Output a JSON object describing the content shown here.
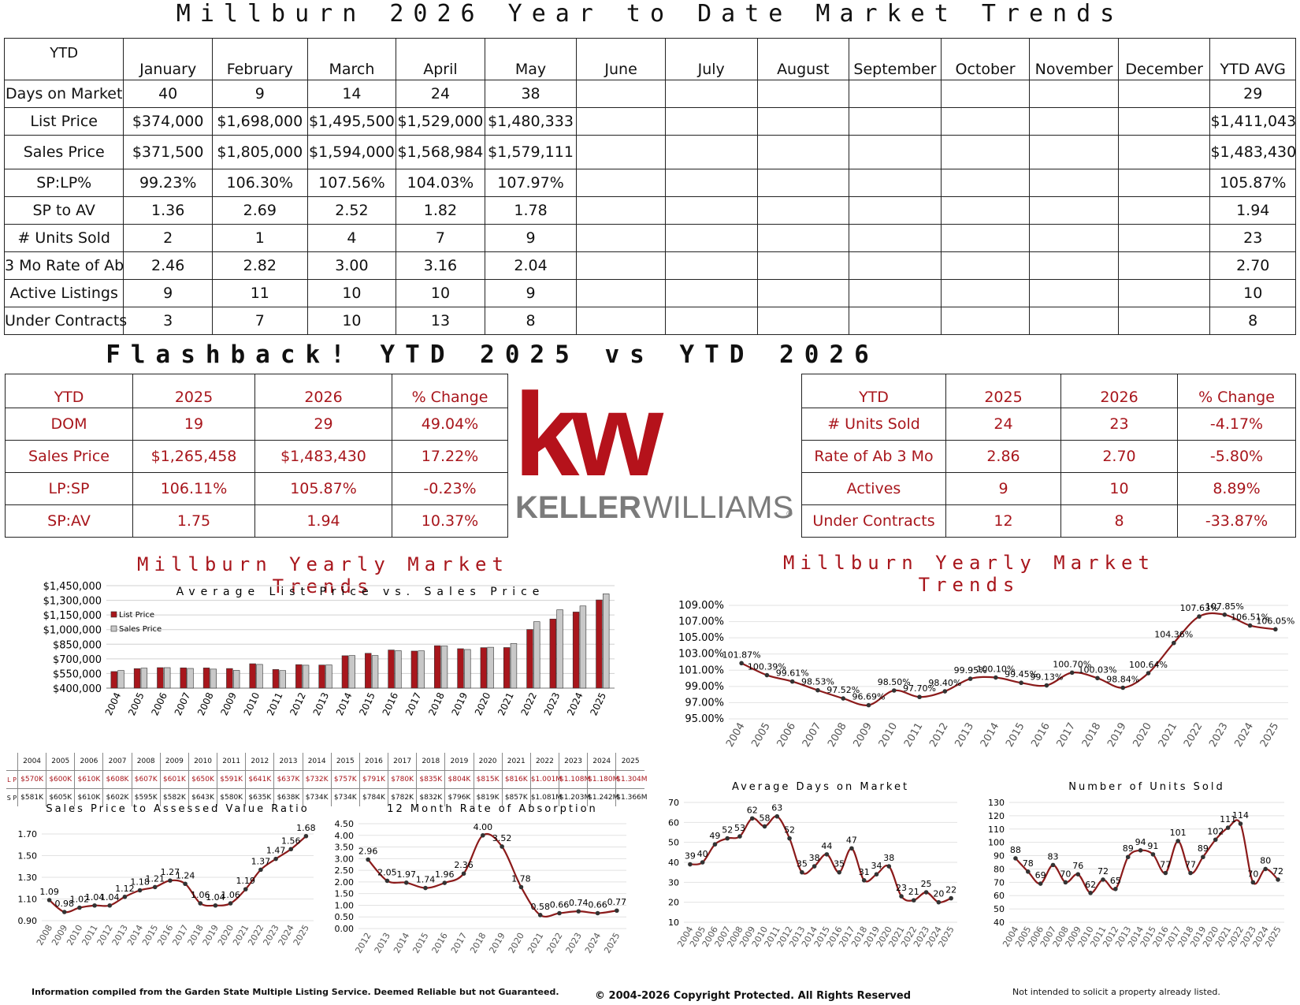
{
  "page_title": "Millburn 2026 Year to Date Market Trends",
  "ytd_table": {
    "corner": "YTD",
    "months": [
      "January",
      "February",
      "March",
      "April",
      "May",
      "June",
      "July",
      "August",
      "September",
      "October",
      "November",
      "December",
      "YTD AVG"
    ],
    "rows": [
      {
        "label": "Days on Market",
        "values": [
          "40",
          "9",
          "14",
          "24",
          "38",
          "",
          "",
          "",
          "",
          "",
          "",
          "",
          "29"
        ]
      },
      {
        "label": "List Price",
        "values": [
          "$374,000",
          "$1,698,000",
          "$1,495,500",
          "$1,529,000",
          "$1,480,333",
          "",
          "",
          "",
          "",
          "",
          "",
          "",
          "$1,411,043"
        ]
      },
      {
        "label": "Sales Price",
        "values": [
          "$371,500",
          "$1,805,000",
          "$1,594,000",
          "$1,568,984",
          "$1,579,111",
          "",
          "",
          "",
          "",
          "",
          "",
          "",
          "$1,483,430"
        ]
      },
      {
        "label": "SP:LP%",
        "values": [
          "99.23%",
          "106.30%",
          "107.56%",
          "104.03%",
          "107.97%",
          "",
          "",
          "",
          "",
          "",
          "",
          "",
          "105.87%"
        ]
      },
      {
        "label": "SP to AV",
        "values": [
          "1.36",
          "2.69",
          "2.52",
          "1.82",
          "1.78",
          "",
          "",
          "",
          "",
          "",
          "",
          "",
          "1.94"
        ]
      },
      {
        "label": "# Units Sold",
        "values": [
          "2",
          "1",
          "4",
          "7",
          "9",
          "",
          "",
          "",
          "",
          "",
          "",
          "",
          "23"
        ]
      },
      {
        "label": "3 Mo Rate of Ab",
        "values": [
          "2.46",
          "2.82",
          "3.00",
          "3.16",
          "2.04",
          "",
          "",
          "",
          "",
          "",
          "",
          "",
          "2.70"
        ]
      },
      {
        "label": "Active Listings",
        "values": [
          "9",
          "11",
          "10",
          "10",
          "9",
          "",
          "",
          "",
          "",
          "",
          "",
          "",
          "10"
        ]
      },
      {
        "label": "Under Contracts",
        "values": [
          "3",
          "7",
          "10",
          "13",
          "8",
          "",
          "",
          "",
          "",
          "",
          "",
          "",
          "8"
        ]
      }
    ]
  },
  "flashback_title": "Flashback! YTD 2025 vs YTD 2026",
  "flash_left": {
    "headers": [
      "YTD",
      "2025",
      "2026",
      "% Change"
    ],
    "rows": [
      [
        "DOM",
        "19",
        "29",
        "49.04%"
      ],
      [
        "Sales Price",
        "$1,265,458",
        "$1,483,430",
        "17.22%"
      ],
      [
        "LP:SP",
        "106.11%",
        "105.87%",
        "-0.23%"
      ],
      [
        "SP:AV",
        "1.75",
        "1.94",
        "10.37%"
      ]
    ]
  },
  "flash_right": {
    "headers": [
      "YTD",
      "2025",
      "2026",
      "% Change"
    ],
    "rows": [
      [
        "# Units Sold",
        "24",
        "23",
        "-4.17%"
      ],
      [
        "Rate of Ab 3 Mo",
        "2.86",
        "2.70",
        "-5.80%"
      ],
      [
        "Actives",
        "9",
        "10",
        "8.89%"
      ],
      [
        "Under Contracts",
        "12",
        "8",
        "-33.87%"
      ]
    ]
  },
  "logo": {
    "mark": "kw",
    "word_a": "KELLER",
    "word_b": "WILLIAMS",
    "reg": "®"
  },
  "section_titles": {
    "left": "Millburn Yearly Market Trends",
    "right": "Millburn Yearly Market Trends"
  },
  "colors": {
    "accent": "#a8161c",
    "bar_sales": "#c8c8c8"
  },
  "lp_sp_table": {
    "row_labels": {
      "lp": "L P",
      "sp": "S P"
    },
    "years": [
      "2004",
      "2005",
      "2006",
      "2007",
      "2008",
      "2009",
      "2010",
      "2011",
      "2012",
      "2013",
      "2014",
      "2015",
      "2016",
      "2017",
      "2018",
      "2019",
      "2020",
      "2021",
      "2022",
      "2023",
      "2024",
      "2025"
    ],
    "lp": [
      "$570K",
      "$600K",
      "$610K",
      "$608K",
      "$607K",
      "$601K",
      "$650K",
      "$591K",
      "$641K",
      "$637K",
      "$732K",
      "$757K",
      "$791K",
      "$780K",
      "$835K",
      "$804K",
      "$815K",
      "$816K",
      "$1.001M",
      "$1.108M",
      "$1.180M",
      "$1.304M"
    ],
    "sp": [
      "$581K",
      "$605K",
      "$610K",
      "$602K",
      "$595K",
      "$582K",
      "$643K",
      "$580K",
      "$635K",
      "$638K",
      "$734K",
      "$734K",
      "$784K",
      "$782K",
      "$832K",
      "$796K",
      "$819K",
      "$857K",
      "$1.081M",
      "$1.203M",
      "$1.242M",
      "$1.366M"
    ]
  },
  "footer": {
    "left": "Information compiled from the Garden State Multiple Listing Service.  Deemed Reliable but not Guaranteed.",
    "center": "© 2004-2026 Copyright Protected.  All Rights Reserved",
    "right": "Not intended to solicit a property already listed."
  },
  "chart_data": [
    {
      "type": "bar",
      "title": "Average List Price vs. Sales Price",
      "categories": [
        "2004",
        "2005",
        "2006",
        "2007",
        "2008",
        "2009",
        "2010",
        "2011",
        "2012",
        "2013",
        "2014",
        "2015",
        "2016",
        "2017",
        "2018",
        "2019",
        "2020",
        "2021",
        "2022",
        "2023",
        "2024",
        "2025"
      ],
      "series": [
        {
          "name": "List Price",
          "color": "#a8161c",
          "values": [
            570000,
            600000,
            610000,
            608000,
            607000,
            601000,
            650000,
            591000,
            641000,
            637000,
            732000,
            757000,
            791000,
            780000,
            835000,
            804000,
            815000,
            816000,
            1001000,
            1108000,
            1180000,
            1304000
          ]
        },
        {
          "name": "Sales Price",
          "color": "#c8c8c8",
          "values": [
            581000,
            605000,
            610000,
            602000,
            595000,
            582000,
            643000,
            580000,
            635000,
            638000,
            734000,
            734000,
            784000,
            782000,
            832000,
            796000,
            819000,
            857000,
            1081000,
            1203000,
            1242000,
            1366000
          ]
        }
      ],
      "yticks": [
        "$400,000",
        "$550,000",
        "$700,000",
        "$850,000",
        "$1,000,000",
        "$1,150,000",
        "$1,300,000",
        "$1,450,000"
      ],
      "ylim": [
        400000,
        1450000
      ],
      "legend": "top-left",
      "grid": true
    },
    {
      "type": "line",
      "title": "",
      "categories": [
        "2004",
        "2005",
        "2006",
        "2007",
        "2008",
        "2009",
        "2010",
        "2011",
        "2012",
        "2013",
        "2014",
        "2015",
        "2016",
        "2017",
        "2018",
        "2019",
        "2020",
        "2021",
        "2022",
        "2023",
        "2024",
        "2025"
      ],
      "values": [
        101.87,
        100.39,
        99.61,
        98.53,
        97.52,
        96.69,
        98.5,
        97.7,
        98.4,
        99.95,
        100.1,
        99.45,
        99.13,
        100.7,
        100.03,
        98.84,
        100.64,
        104.36,
        107.63,
        107.85,
        106.51,
        106.05
      ],
      "labels": [
        "101.87%",
        "100.39%",
        "99.61%",
        "98.53%",
        "97.52%",
        "96.69%",
        "98.50%",
        "97.70%",
        "98.40%",
        "99.95%",
        "100.10%",
        "99.45%",
        "99.13%",
        "100.70%",
        "100.03%",
        "98.84%",
        "100.64%",
        "104.36%",
        "107.63%",
        "107.85%",
        "106.51%",
        "106.05%"
      ],
      "yticks": [
        "95.00%",
        "97.00%",
        "99.00%",
        "101.00%",
        "103.00%",
        "105.00%",
        "107.00%",
        "109.00%"
      ],
      "ylim": [
        95,
        109
      ],
      "grid": true
    },
    {
      "type": "line",
      "title": "Sales Price to Assessed Value Ratio",
      "categories": [
        "2008",
        "2009",
        "2010",
        "2011",
        "2012",
        "2013",
        "2014",
        "2015",
        "2016",
        "2017",
        "2018",
        "2019",
        "2020",
        "2021",
        "2022",
        "2023",
        "2024",
        "2025"
      ],
      "values": [
        1.09,
        0.98,
        1.02,
        1.04,
        1.04,
        1.12,
        1.18,
        1.21,
        1.27,
        1.24,
        1.06,
        1.04,
        1.06,
        1.19,
        1.37,
        1.47,
        1.56,
        1.68
      ],
      "labels": [
        "1.09",
        "0.98",
        "1.02",
        "1.04",
        "1.04",
        "1.12",
        "1.18",
        "1.21",
        "1.27",
        "1.24",
        "1.06",
        "1.04",
        "1.06",
        "1.19",
        "1.37",
        "1.47",
        "1.56",
        "1.68"
      ],
      "yticks": [
        "0.90",
        "1.10",
        "1.30",
        "1.50",
        "1.70"
      ],
      "ylim": [
        0.9,
        1.7
      ],
      "grid": true
    },
    {
      "type": "line",
      "title": "12 Month Rate of Absorption",
      "categories": [
        "2012",
        "2013",
        "2014",
        "2015",
        "2016",
        "2017",
        "2018",
        "2019",
        "2020",
        "2021",
        "2022",
        "2023",
        "2024",
        "2025"
      ],
      "values": [
        2.96,
        2.05,
        1.97,
        1.74,
        1.96,
        2.36,
        4.0,
        3.52,
        1.78,
        0.58,
        0.66,
        0.74,
        0.66,
        0.77
      ],
      "labels": [
        "2.96",
        "2.05",
        "1.97",
        "1.74",
        "1.96",
        "2.36",
        "4.00",
        "3.52",
        "1.78",
        "0.58",
        "0.66",
        "0.74",
        "0.66",
        "0.77"
      ],
      "yticks": [
        "0.00",
        "0.50",
        "1.00",
        "1.50",
        "2.00",
        "2.50",
        "3.00",
        "3.50",
        "4.00",
        "4.50"
      ],
      "ylim": [
        0,
        4.5
      ],
      "grid": true
    },
    {
      "type": "line",
      "title": "Average Days on Market",
      "categories": [
        "2004",
        "2005",
        "2006",
        "2007",
        "2008",
        "2009",
        "2010",
        "2011",
        "2012",
        "2013",
        "2014",
        "2015",
        "2016",
        "2017",
        "2018",
        "2019",
        "2020",
        "2021",
        "2022",
        "2023",
        "2024",
        "2025"
      ],
      "values": [
        39,
        40,
        49,
        52,
        53,
        62,
        58,
        63,
        52,
        35,
        38,
        44,
        35,
        47,
        31,
        34,
        38,
        23,
        21,
        25,
        20,
        22
      ],
      "labels": [
        "39",
        "40",
        "49",
        "52",
        "53",
        "62",
        "58",
        "63",
        "52",
        "35",
        "38",
        "44",
        "35",
        "47",
        "31",
        "34",
        "38",
        "23",
        "21",
        "25",
        "20",
        "22"
      ],
      "yticks": [
        "10",
        "20",
        "30",
        "40",
        "50",
        "60",
        "70"
      ],
      "ylim": [
        10,
        70
      ],
      "grid": true
    },
    {
      "type": "line",
      "title": "Number of Units Sold",
      "categories": [
        "2004",
        "2005",
        "2006",
        "2007",
        "2008",
        "2009",
        "2010",
        "2011",
        "2012",
        "2013",
        "2014",
        "2015",
        "2016",
        "2017",
        "2018",
        "2019",
        "2020",
        "2021",
        "2022",
        "2023",
        "2024",
        "2025"
      ],
      "values": [
        88,
        78,
        69,
        83,
        70,
        76,
        62,
        72,
        65,
        89,
        94,
        91,
        77,
        101,
        77,
        89,
        102,
        111,
        114,
        70,
        80,
        72
      ],
      "labels": [
        "88",
        "78",
        "69",
        "83",
        "70",
        "76",
        "62",
        "72",
        "65",
        "89",
        "94",
        "91",
        "77",
        "101",
        "77",
        "89",
        "102",
        "111",
        "114",
        "70",
        "80",
        "72"
      ],
      "yticks": [
        "40",
        "50",
        "60",
        "70",
        "80",
        "90",
        "100",
        "110",
        "120",
        "130"
      ],
      "ylim": [
        40,
        130
      ],
      "grid": true
    }
  ]
}
